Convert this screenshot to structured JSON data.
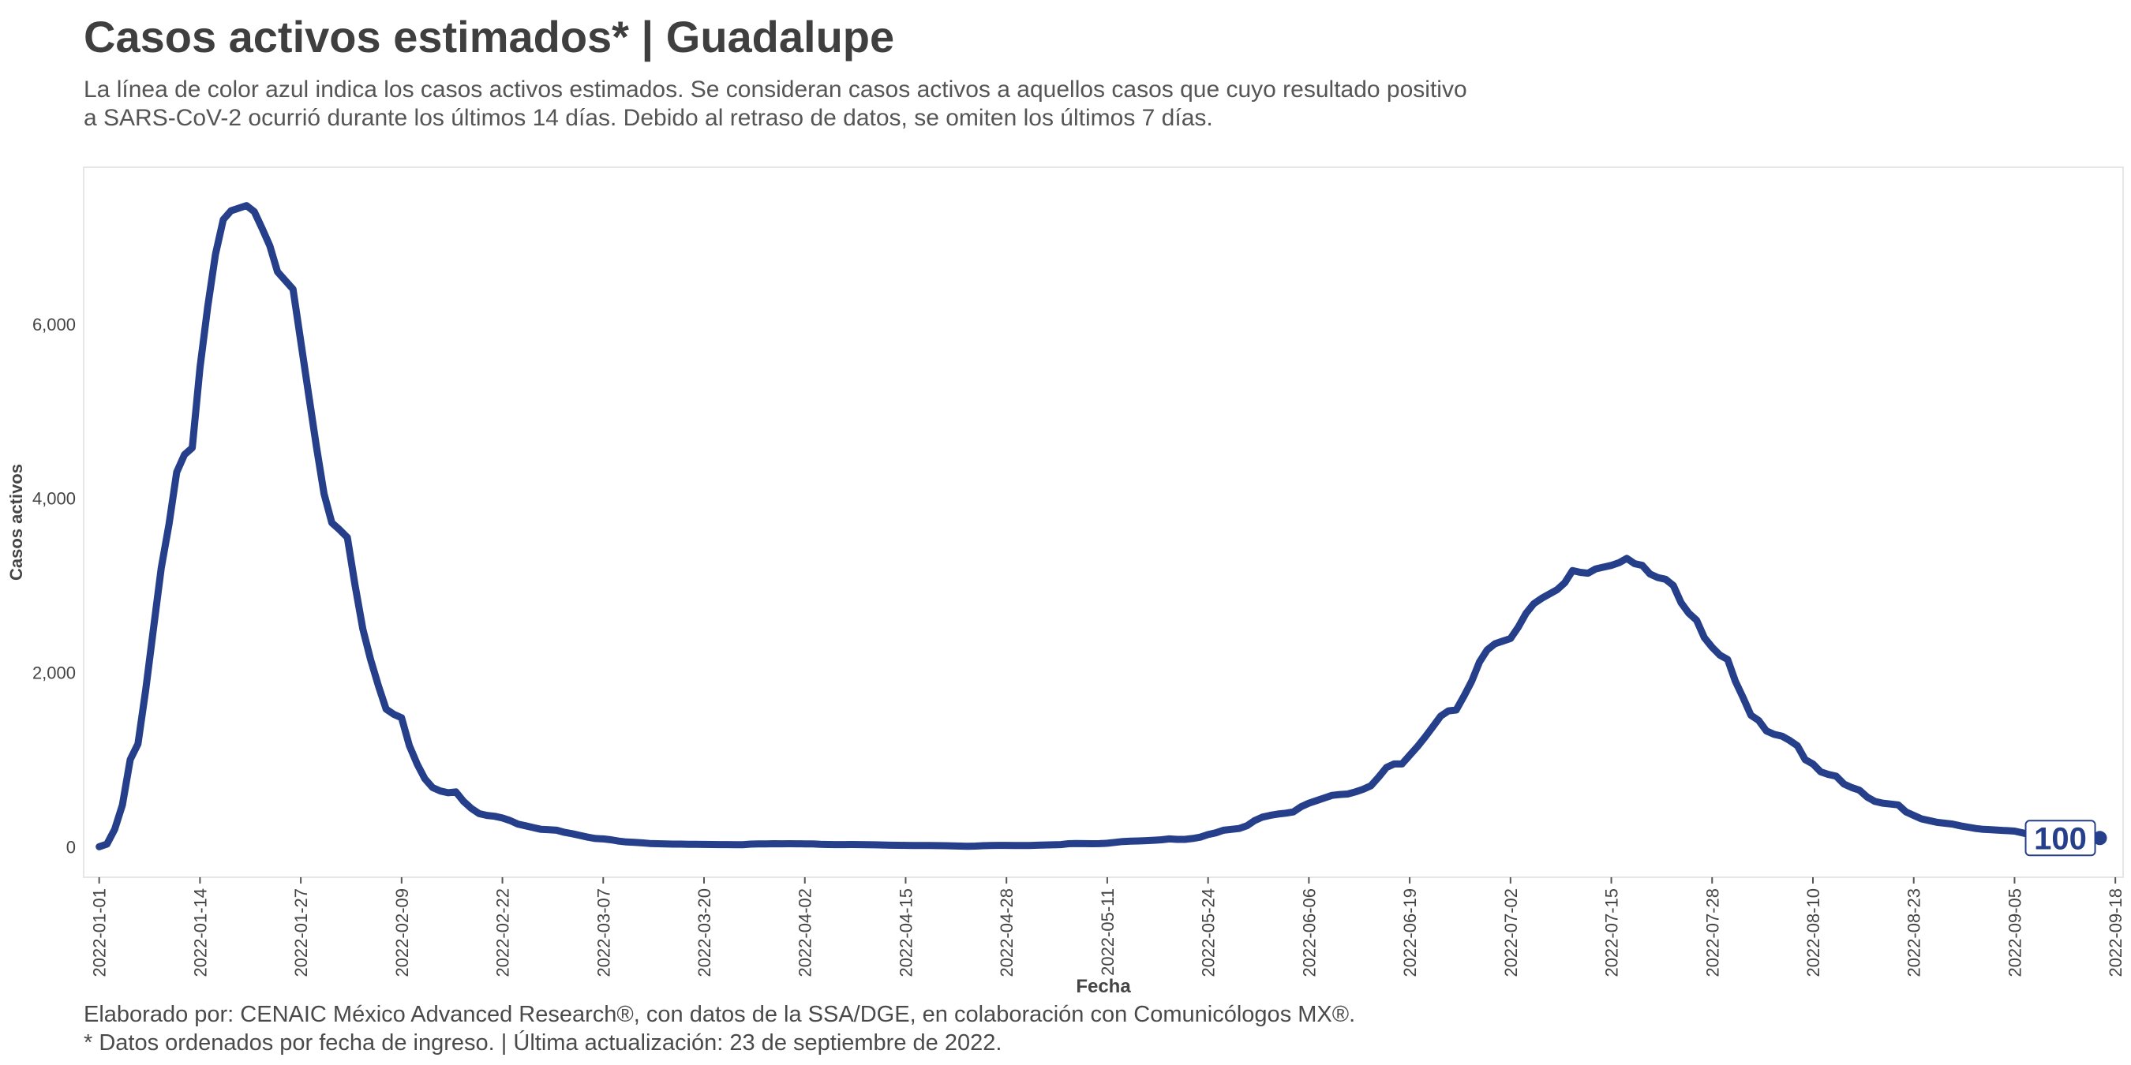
{
  "header": {
    "title": "Casos activos estimados* | Guadalupe",
    "subtitle_line1": "La línea de color azul indica los casos activos estimados. Se consideran casos activos a aquellos casos que cuyo resultado positivo",
    "subtitle_line2": "a SARS-CoV-2 ocurrió durante los últimos 14 días. Debido al retraso de datos, se omiten los últimos 7 días."
  },
  "footer": {
    "caption_line1": "Elaborado por: CENAIC México Advanced Research®, con datos de la SSA/DGE, en colaboración con Comunicólogos MX®.",
    "caption_line2": "* Datos ordenados por fecha de ingreso. | Última actualización: 23 de septiembre de 2022."
  },
  "colors": {
    "line": "#263f8a",
    "axis_text": "#444444",
    "panel_border": "#e6e6e6"
  },
  "chart_data": {
    "type": "line",
    "xlabel": "Fecha",
    "ylabel": "Casos activos",
    "xlim": [
      "2021-12-30",
      "2022-09-19"
    ],
    "ylim": [
      -350,
      7800
    ],
    "x_ticks": [
      "2022-01-01",
      "2022-01-14",
      "2022-01-27",
      "2022-02-09",
      "2022-02-22",
      "2022-03-07",
      "2022-03-20",
      "2022-04-02",
      "2022-04-15",
      "2022-04-28",
      "2022-05-11",
      "2022-05-24",
      "2022-06-06",
      "2022-06-19",
      "2022-07-02",
      "2022-07-15",
      "2022-07-28",
      "2022-08-10",
      "2022-08-23",
      "2022-09-05",
      "2022-09-18"
    ],
    "y_ticks": [
      0,
      2000,
      4000,
      6000
    ],
    "y_tick_labels": [
      "0",
      "2,000",
      "4,000",
      "6,000"
    ],
    "grid": false,
    "end_label": "100",
    "series": [
      {
        "points": [
          [
            "2022-01-01",
            0
          ],
          [
            "2022-01-02",
            30
          ],
          [
            "2022-01-03",
            200
          ],
          [
            "2022-01-04",
            480
          ],
          [
            "2022-01-05",
            1000
          ],
          [
            "2022-01-06",
            1180
          ],
          [
            "2022-01-07",
            1800
          ],
          [
            "2022-01-08",
            2500
          ],
          [
            "2022-01-09",
            3200
          ],
          [
            "2022-01-10",
            3700
          ],
          [
            "2022-01-11",
            4300
          ],
          [
            "2022-01-12",
            4500
          ],
          [
            "2022-01-13",
            4580
          ],
          [
            "2022-01-14",
            5500
          ],
          [
            "2022-01-15",
            6200
          ],
          [
            "2022-01-16",
            6800
          ],
          [
            "2022-01-17",
            7200
          ],
          [
            "2022-01-18",
            7300
          ],
          [
            "2022-01-19",
            7330
          ],
          [
            "2022-01-20",
            7360
          ],
          [
            "2022-01-21",
            7290
          ],
          [
            "2022-01-22",
            7100
          ],
          [
            "2022-01-23",
            6900
          ],
          [
            "2022-01-24",
            6600
          ],
          [
            "2022-01-25",
            6500
          ],
          [
            "2022-01-26",
            6400
          ],
          [
            "2022-01-27",
            5800
          ],
          [
            "2022-01-28",
            5200
          ],
          [
            "2022-01-29",
            4600
          ],
          [
            "2022-01-30",
            4050
          ],
          [
            "2022-01-31",
            3720
          ],
          [
            "2022-02-01",
            3640
          ],
          [
            "2022-02-02",
            3550
          ],
          [
            "2022-02-03",
            3000
          ],
          [
            "2022-02-04",
            2500
          ],
          [
            "2022-02-05",
            2150
          ],
          [
            "2022-02-06",
            1850
          ],
          [
            "2022-02-07",
            1580
          ],
          [
            "2022-02-08",
            1520
          ],
          [
            "2022-02-09",
            1480
          ],
          [
            "2022-02-10",
            1160
          ],
          [
            "2022-02-11",
            950
          ],
          [
            "2022-02-12",
            780
          ],
          [
            "2022-02-13",
            680
          ],
          [
            "2022-02-14",
            640
          ],
          [
            "2022-02-15",
            620
          ],
          [
            "2022-02-16",
            630
          ],
          [
            "2022-02-17",
            520
          ],
          [
            "2022-02-18",
            440
          ],
          [
            "2022-02-19",
            380
          ],
          [
            "2022-02-20",
            360
          ],
          [
            "2022-02-21",
            350
          ],
          [
            "2022-02-22",
            330
          ],
          [
            "2022-02-23",
            300
          ],
          [
            "2022-02-24",
            260
          ],
          [
            "2022-02-25",
            240
          ],
          [
            "2022-02-26",
            220
          ],
          [
            "2022-02-27",
            200
          ],
          [
            "2022-02-28",
            195
          ],
          [
            "2022-03-01",
            190
          ],
          [
            "2022-03-02",
            165
          ],
          [
            "2022-03-03",
            150
          ],
          [
            "2022-03-04",
            130
          ],
          [
            "2022-03-05",
            110
          ],
          [
            "2022-03-06",
            95
          ],
          [
            "2022-03-07",
            90
          ],
          [
            "2022-03-08",
            80
          ],
          [
            "2022-03-09",
            65
          ],
          [
            "2022-03-10",
            55
          ],
          [
            "2022-03-11",
            50
          ],
          [
            "2022-03-12",
            45
          ],
          [
            "2022-03-13",
            38
          ],
          [
            "2022-03-14",
            35
          ],
          [
            "2022-03-15",
            33
          ],
          [
            "2022-03-16",
            30
          ],
          [
            "2022-03-17",
            30
          ],
          [
            "2022-03-18",
            28
          ],
          [
            "2022-03-19",
            28
          ],
          [
            "2022-03-20",
            27
          ],
          [
            "2022-03-21",
            26
          ],
          [
            "2022-03-22",
            25
          ],
          [
            "2022-03-23",
            25
          ],
          [
            "2022-03-24",
            24
          ],
          [
            "2022-03-25",
            24
          ],
          [
            "2022-03-26",
            30
          ],
          [
            "2022-03-27",
            32
          ],
          [
            "2022-03-28",
            33
          ],
          [
            "2022-03-29",
            35
          ],
          [
            "2022-03-30",
            34
          ],
          [
            "2022-03-31",
            35
          ],
          [
            "2022-04-01",
            34
          ],
          [
            "2022-04-02",
            33
          ],
          [
            "2022-04-03",
            32
          ],
          [
            "2022-04-04",
            28
          ],
          [
            "2022-04-05",
            26
          ],
          [
            "2022-04-06",
            25
          ],
          [
            "2022-04-07",
            25
          ],
          [
            "2022-04-08",
            26
          ],
          [
            "2022-04-09",
            25
          ],
          [
            "2022-04-10",
            24
          ],
          [
            "2022-04-11",
            22
          ],
          [
            "2022-04-12",
            20
          ],
          [
            "2022-04-13",
            18
          ],
          [
            "2022-04-14",
            17
          ],
          [
            "2022-04-15",
            16
          ],
          [
            "2022-04-16",
            15
          ],
          [
            "2022-04-17",
            15
          ],
          [
            "2022-04-18",
            14
          ],
          [
            "2022-04-19",
            13
          ],
          [
            "2022-04-20",
            12
          ],
          [
            "2022-04-21",
            10
          ],
          [
            "2022-04-22",
            8
          ],
          [
            "2022-04-23",
            6
          ],
          [
            "2022-04-24",
            8
          ],
          [
            "2022-04-25",
            12
          ],
          [
            "2022-04-26",
            15
          ],
          [
            "2022-04-27",
            16
          ],
          [
            "2022-04-28",
            16
          ],
          [
            "2022-04-29",
            15
          ],
          [
            "2022-04-30",
            14
          ],
          [
            "2022-05-01",
            15
          ],
          [
            "2022-05-02",
            18
          ],
          [
            "2022-05-03",
            20
          ],
          [
            "2022-05-04",
            22
          ],
          [
            "2022-05-05",
            25
          ],
          [
            "2022-05-06",
            35
          ],
          [
            "2022-05-07",
            38
          ],
          [
            "2022-05-08",
            36
          ],
          [
            "2022-05-09",
            35
          ],
          [
            "2022-05-10",
            36
          ],
          [
            "2022-05-11",
            40
          ],
          [
            "2022-05-12",
            50
          ],
          [
            "2022-05-13",
            60
          ],
          [
            "2022-05-14",
            65
          ],
          [
            "2022-05-15",
            67
          ],
          [
            "2022-05-16",
            70
          ],
          [
            "2022-05-17",
            75
          ],
          [
            "2022-05-18",
            80
          ],
          [
            "2022-05-19",
            90
          ],
          [
            "2022-05-20",
            85
          ],
          [
            "2022-05-21",
            85
          ],
          [
            "2022-05-22",
            95
          ],
          [
            "2022-05-23",
            110
          ],
          [
            "2022-05-24",
            140
          ],
          [
            "2022-05-25",
            160
          ],
          [
            "2022-05-26",
            190
          ],
          [
            "2022-05-27",
            200
          ],
          [
            "2022-05-28",
            210
          ],
          [
            "2022-05-29",
            240
          ],
          [
            "2022-05-30",
            300
          ],
          [
            "2022-05-31",
            340
          ],
          [
            "2022-06-01",
            360
          ],
          [
            "2022-06-02",
            375
          ],
          [
            "2022-06-03",
            385
          ],
          [
            "2022-06-04",
            400
          ],
          [
            "2022-06-05",
            460
          ],
          [
            "2022-06-06",
            500
          ],
          [
            "2022-06-07",
            530
          ],
          [
            "2022-06-08",
            560
          ],
          [
            "2022-06-09",
            590
          ],
          [
            "2022-06-10",
            600
          ],
          [
            "2022-06-11",
            605
          ],
          [
            "2022-06-12",
            630
          ],
          [
            "2022-06-13",
            660
          ],
          [
            "2022-06-14",
            700
          ],
          [
            "2022-06-15",
            800
          ],
          [
            "2022-06-16",
            910
          ],
          [
            "2022-06-17",
            950
          ],
          [
            "2022-06-18",
            950
          ],
          [
            "2022-06-19",
            1050
          ],
          [
            "2022-06-20",
            1150
          ],
          [
            "2022-06-21",
            1260
          ],
          [
            "2022-06-22",
            1380
          ],
          [
            "2022-06-23",
            1500
          ],
          [
            "2022-06-24",
            1560
          ],
          [
            "2022-06-25",
            1570
          ],
          [
            "2022-06-26",
            1730
          ],
          [
            "2022-06-27",
            1900
          ],
          [
            "2022-06-28",
            2120
          ],
          [
            "2022-06-29",
            2260
          ],
          [
            "2022-06-30",
            2330
          ],
          [
            "2022-07-01",
            2360
          ],
          [
            "2022-07-02",
            2390
          ],
          [
            "2022-07-03",
            2520
          ],
          [
            "2022-07-04",
            2680
          ],
          [
            "2022-07-05",
            2790
          ],
          [
            "2022-07-06",
            2850
          ],
          [
            "2022-07-07",
            2900
          ],
          [
            "2022-07-08",
            2950
          ],
          [
            "2022-07-09",
            3030
          ],
          [
            "2022-07-10",
            3170
          ],
          [
            "2022-07-11",
            3150
          ],
          [
            "2022-07-12",
            3140
          ],
          [
            "2022-07-13",
            3190
          ],
          [
            "2022-07-14",
            3210
          ],
          [
            "2022-07-15",
            3230
          ],
          [
            "2022-07-16",
            3260
          ],
          [
            "2022-07-17",
            3310
          ],
          [
            "2022-07-18",
            3250
          ],
          [
            "2022-07-19",
            3230
          ],
          [
            "2022-07-20",
            3130
          ],
          [
            "2022-07-21",
            3090
          ],
          [
            "2022-07-22",
            3070
          ],
          [
            "2022-07-23",
            3000
          ],
          [
            "2022-07-24",
            2800
          ],
          [
            "2022-07-25",
            2680
          ],
          [
            "2022-07-26",
            2600
          ],
          [
            "2022-07-27",
            2400
          ],
          [
            "2022-07-28",
            2290
          ],
          [
            "2022-07-29",
            2200
          ],
          [
            "2022-07-30",
            2150
          ],
          [
            "2022-07-31",
            1900
          ],
          [
            "2022-08-01",
            1710
          ],
          [
            "2022-08-02",
            1510
          ],
          [
            "2022-08-03",
            1450
          ],
          [
            "2022-08-04",
            1330
          ],
          [
            "2022-08-05",
            1290
          ],
          [
            "2022-08-06",
            1270
          ],
          [
            "2022-08-07",
            1220
          ],
          [
            "2022-08-08",
            1160
          ],
          [
            "2022-08-09",
            1000
          ],
          [
            "2022-08-10",
            950
          ],
          [
            "2022-08-11",
            860
          ],
          [
            "2022-08-12",
            830
          ],
          [
            "2022-08-13",
            810
          ],
          [
            "2022-08-14",
            720
          ],
          [
            "2022-08-15",
            680
          ],
          [
            "2022-08-16",
            650
          ],
          [
            "2022-08-17",
            570
          ],
          [
            "2022-08-18",
            520
          ],
          [
            "2022-08-19",
            500
          ],
          [
            "2022-08-20",
            490
          ],
          [
            "2022-08-21",
            480
          ],
          [
            "2022-08-22",
            400
          ],
          [
            "2022-08-23",
            360
          ],
          [
            "2022-08-24",
            320
          ],
          [
            "2022-08-25",
            300
          ],
          [
            "2022-08-26",
            280
          ],
          [
            "2022-08-27",
            270
          ],
          [
            "2022-08-28",
            260
          ],
          [
            "2022-08-29",
            240
          ],
          [
            "2022-08-30",
            225
          ],
          [
            "2022-08-31",
            210
          ],
          [
            "2022-09-01",
            200
          ],
          [
            "2022-09-02",
            195
          ],
          [
            "2022-09-03",
            190
          ],
          [
            "2022-09-04",
            185
          ],
          [
            "2022-09-05",
            180
          ],
          [
            "2022-09-06",
            160
          ],
          [
            "2022-09-07",
            140
          ],
          [
            "2022-09-08",
            125
          ],
          [
            "2022-09-09",
            115
          ],
          [
            "2022-09-10",
            108
          ],
          [
            "2022-09-11",
            105
          ],
          [
            "2022-09-12",
            102
          ],
          [
            "2022-09-13",
            100
          ],
          [
            "2022-09-14",
            100
          ],
          [
            "2022-09-15",
            100
          ],
          [
            "2022-09-16",
            100
          ]
        ]
      }
    ]
  }
}
